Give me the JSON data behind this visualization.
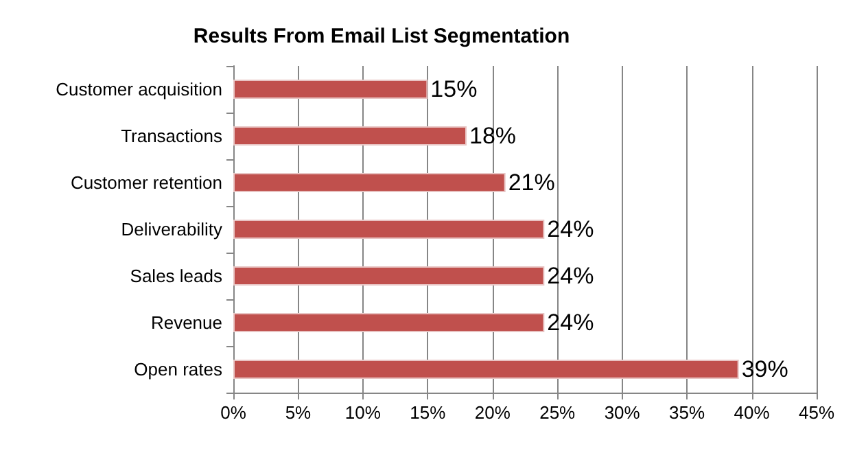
{
  "chart_data": {
    "type": "bar",
    "orientation": "horizontal",
    "title": "Results From Email List Segmentation",
    "categories": [
      "Customer acquisition",
      "Transactions",
      "Customer retention",
      "Deliverability",
      "Sales leads",
      "Revenue",
      "Open rates"
    ],
    "values": [
      15,
      18,
      21,
      24,
      24,
      24,
      39
    ],
    "value_labels": [
      "15%",
      "18%",
      "21%",
      "24%",
      "24%",
      "24%",
      "39%"
    ],
    "color": "#c0504d",
    "xlim": [
      0,
      45
    ],
    "xticks": [
      {
        "value": 0,
        "label": "0%"
      },
      {
        "value": 5,
        "label": "5%"
      },
      {
        "value": 10,
        "label": "10%"
      },
      {
        "value": 15,
        "label": "15%"
      },
      {
        "value": 20,
        "label": "20%"
      },
      {
        "value": 25,
        "label": "25%"
      },
      {
        "value": 30,
        "label": "30%"
      },
      {
        "value": 35,
        "label": "35%"
      },
      {
        "value": 40,
        "label": "40%"
      },
      {
        "value": 45,
        "label": "45%"
      }
    ],
    "grid": "x"
  }
}
